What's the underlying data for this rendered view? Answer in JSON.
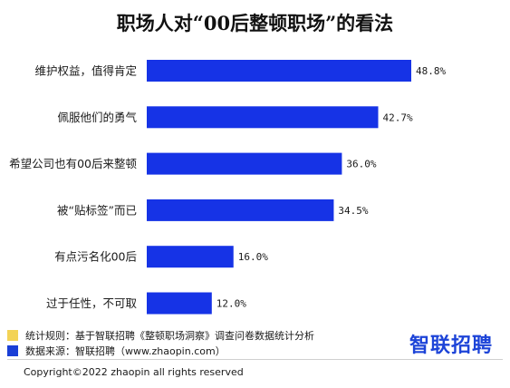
{
  "colors": {
    "bar": "#1633e6",
    "note_square": "#f3d356",
    "source_square": "#1a3fd6",
    "logo": "#1d44d8"
  },
  "chart_data": {
    "type": "bar",
    "orientation": "horizontal",
    "title": "职场人对“00后整顿职场”的看法",
    "categories": [
      "维护权益，值得肯定",
      "佩服他们的勇气",
      "希望公司也有00后来整顿",
      "被“贴标签”而已",
      "有点污名化00后",
      "过于任性，不可取"
    ],
    "values": [
      48.8,
      42.7,
      36.0,
      34.5,
      16.0,
      12.0
    ],
    "value_labels": [
      "48.8%",
      "42.7%",
      "36.0%",
      "34.5%",
      "16.0%",
      "12.0%"
    ],
    "unit": "%",
    "grid": false,
    "legend": "none"
  },
  "footer": {
    "note": "统计规则：基于智联招聘《整顿职场洞察》调查问卷数据统计分析",
    "source": "数据来源：智联招聘（www.zhaopin.com）",
    "logo_text": "智联招聘",
    "copyright": "Copyright©2022 zhaopin all rights reserved"
  }
}
